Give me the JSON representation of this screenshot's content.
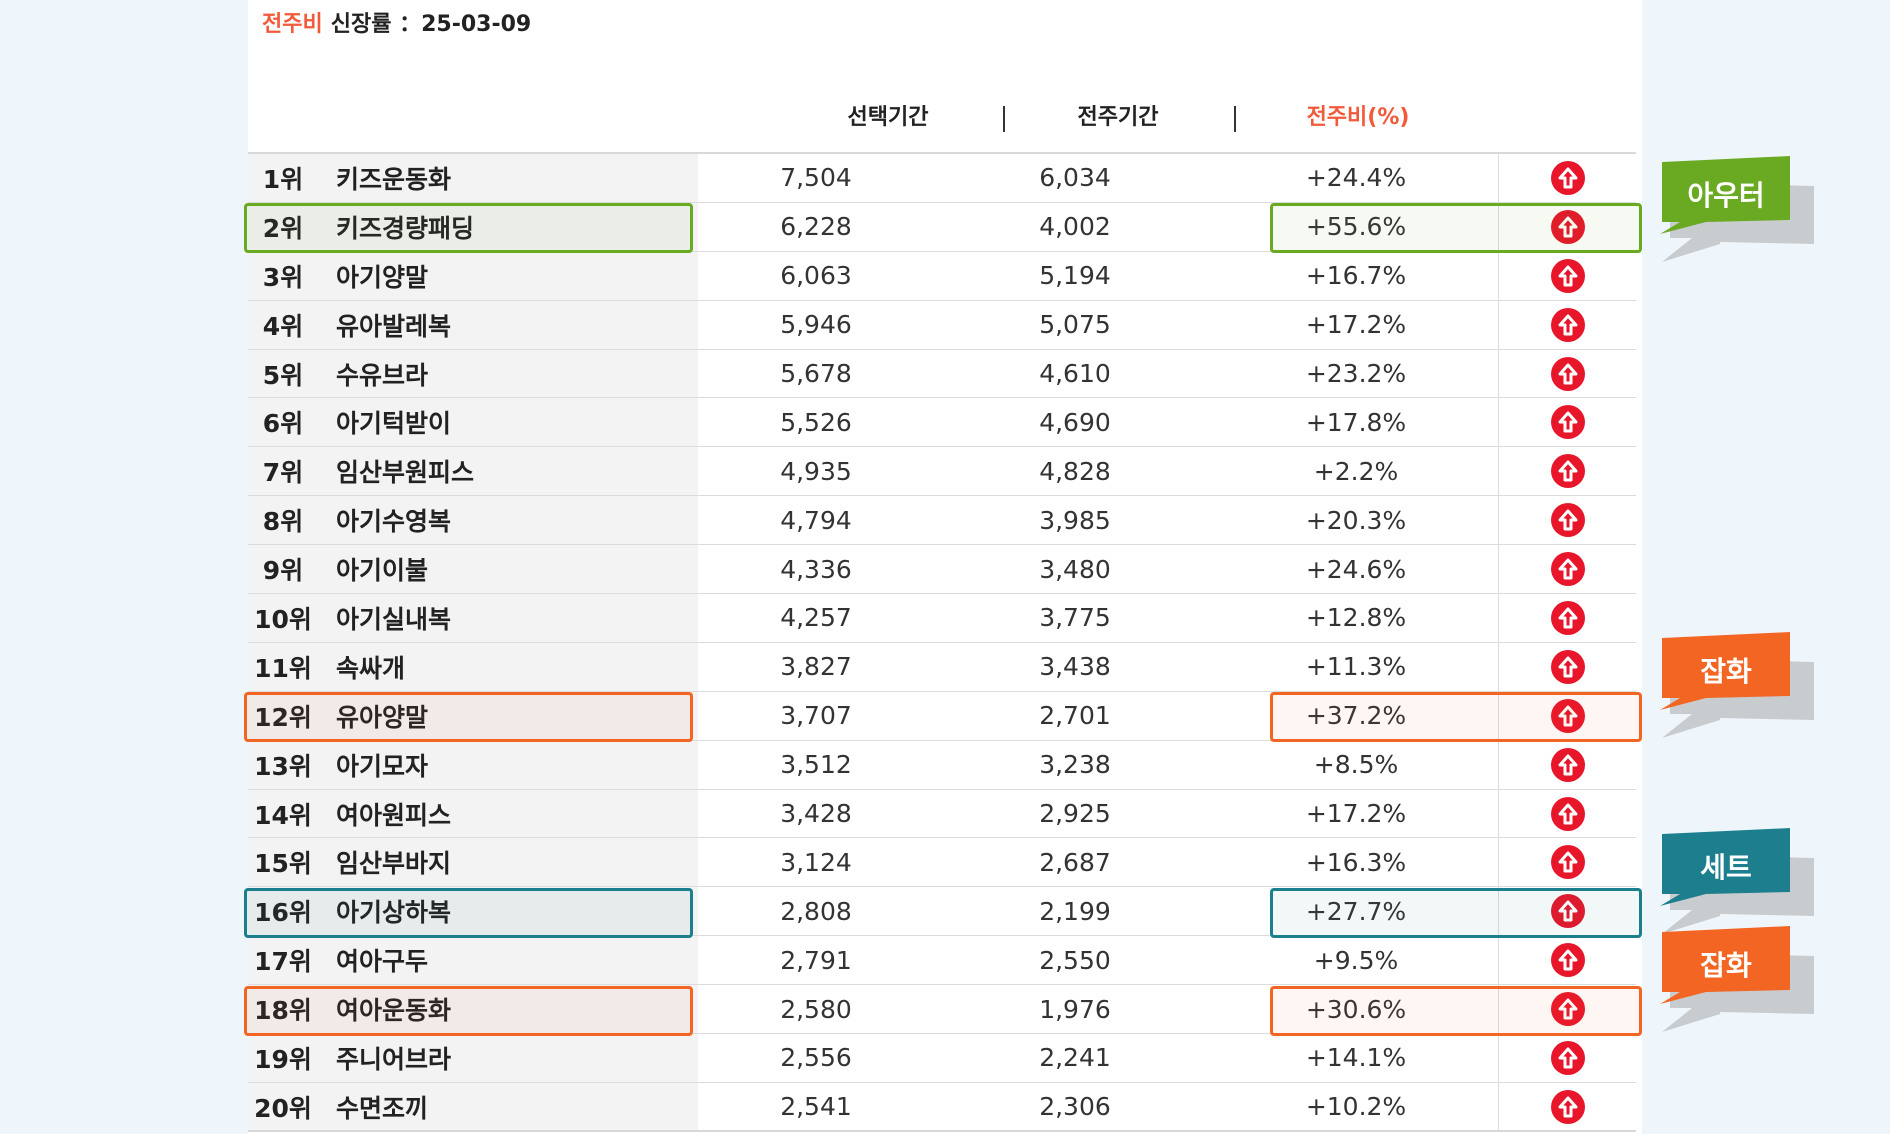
{
  "header": {
    "accent": "전주비",
    "rest": "신장률 ：25-03-09"
  },
  "columns": {
    "selected": "선택기간",
    "previous": "전주기간",
    "ratio": "전주비(%)",
    "separator": "|"
  },
  "rows": [
    {
      "rank": "1위",
      "name": "키즈운동화",
      "sel": "7,504",
      "prev": "6,034",
      "pct": "+24.4%"
    },
    {
      "rank": "2위",
      "name": "키즈경량패딩",
      "sel": "6,228",
      "prev": "4,002",
      "pct": "+55.6%"
    },
    {
      "rank": "3위",
      "name": "아기양말",
      "sel": "6,063",
      "prev": "5,194",
      "pct": "+16.7%"
    },
    {
      "rank": "4위",
      "name": "유아발레복",
      "sel": "5,946",
      "prev": "5,075",
      "pct": "+17.2%"
    },
    {
      "rank": "5위",
      "name": "수유브라",
      "sel": "5,678",
      "prev": "4,610",
      "pct": "+23.2%"
    },
    {
      "rank": "6위",
      "name": "아기턱받이",
      "sel": "5,526",
      "prev": "4,690",
      "pct": "+17.8%"
    },
    {
      "rank": "7위",
      "name": "임산부원피스",
      "sel": "4,935",
      "prev": "4,828",
      "pct": "+2.2%"
    },
    {
      "rank": "8위",
      "name": "아기수영복",
      "sel": "4,794",
      "prev": "3,985",
      "pct": "+20.3%"
    },
    {
      "rank": "9위",
      "name": "아기이불",
      "sel": "4,336",
      "prev": "3,480",
      "pct": "+24.6%"
    },
    {
      "rank": "10위",
      "name": "아기실내복",
      "sel": "4,257",
      "prev": "3,775",
      "pct": "+12.8%"
    },
    {
      "rank": "11위",
      "name": "속싸개",
      "sel": "3,827",
      "prev": "3,438",
      "pct": "+11.3%"
    },
    {
      "rank": "12위",
      "name": "유아양말",
      "sel": "3,707",
      "prev": "2,701",
      "pct": "+37.2%"
    },
    {
      "rank": "13위",
      "name": "아기모자",
      "sel": "3,512",
      "prev": "3,238",
      "pct": "+8.5%"
    },
    {
      "rank": "14위",
      "name": "여아원피스",
      "sel": "3,428",
      "prev": "2,925",
      "pct": "+17.2%"
    },
    {
      "rank": "15위",
      "name": "임산부바지",
      "sel": "3,124",
      "prev": "2,687",
      "pct": "+16.3%"
    },
    {
      "rank": "16위",
      "name": "아기상하복",
      "sel": "2,808",
      "prev": "2,199",
      "pct": "+27.7%"
    },
    {
      "rank": "17위",
      "name": "여아구두",
      "sel": "2,791",
      "prev": "2,550",
      "pct": "+9.5%"
    },
    {
      "rank": "18위",
      "name": "여아운동화",
      "sel": "2,580",
      "prev": "1,976",
      "pct": "+30.6%"
    },
    {
      "rank": "19위",
      "name": "주니어브라",
      "sel": "2,556",
      "prev": "2,241",
      "pct": "+14.1%"
    },
    {
      "rank": "20위",
      "name": "수면조끼",
      "sel": "2,541",
      "prev": "2,306",
      "pct": "+10.2%"
    }
  ],
  "callouts": {
    "outer": "아우터",
    "goods1": "잡화",
    "set": "세트",
    "goods2": "잡화"
  },
  "colors": {
    "accent": "#f15a3b",
    "up_arrow": "#e8162a",
    "green": "#6aaa22",
    "orange": "#f26522",
    "teal": "#1d7f8e"
  },
  "icons": {
    "trend": "arrow-up-circle-icon"
  }
}
